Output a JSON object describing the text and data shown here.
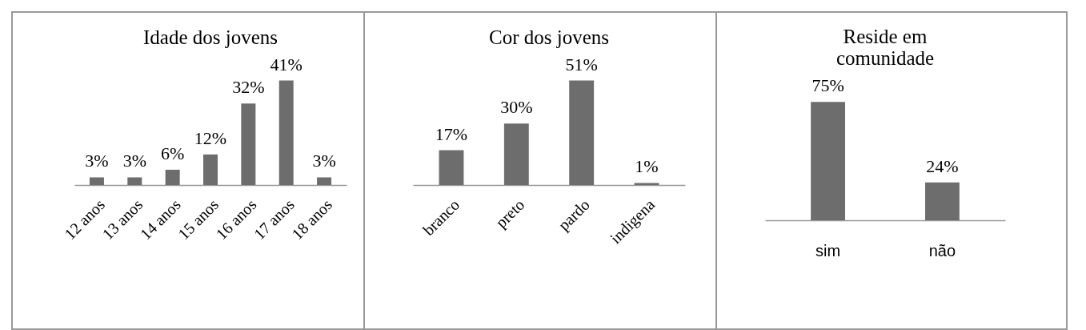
{
  "chart_data": [
    {
      "type": "bar",
      "title": "Idade dos jovens",
      "categories": [
        "12 anos",
        "13 anos",
        "14 anos",
        "15 anos",
        "16 anos",
        "17 anos",
        "18 anos"
      ],
      "values": [
        3,
        3,
        6,
        12,
        32,
        41,
        3
      ],
      "value_labels": [
        "3%",
        "3%",
        "6%",
        "12%",
        "32%",
        "41%",
        "3%"
      ],
      "color": "#6d6d6d"
    },
    {
      "type": "bar",
      "title": "Cor dos jovens",
      "categories": [
        "branco",
        "preto",
        "pardo",
        "indigena"
      ],
      "values": [
        17,
        30,
        51,
        1
      ],
      "value_labels": [
        "17%",
        "30%",
        "51%",
        "1%"
      ],
      "color": "#6d6d6d"
    },
    {
      "type": "bar",
      "title": "Reside em comunidade",
      "categories": [
        "sim",
        "não"
      ],
      "values": [
        75,
        24
      ],
      "value_labels": [
        "75%",
        "24%"
      ],
      "color": "#6d6d6d"
    }
  ]
}
